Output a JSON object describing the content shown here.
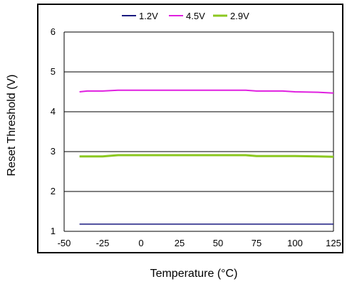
{
  "chart_data": {
    "type": "line",
    "title": "",
    "xlabel": "Temperature (°C)",
    "ylabel": "Reset Threshold  (V)",
    "xlim": [
      -50,
      125
    ],
    "ylim": [
      1,
      6
    ],
    "xticks": [
      -50,
      -25,
      0,
      25,
      50,
      75,
      100,
      125
    ],
    "yticks": [
      1,
      2,
      3,
      4,
      5,
      6
    ],
    "x_tick_labels": [
      "-50",
      "-25",
      "0",
      "25",
      "50",
      "75",
      "100",
      "125"
    ],
    "y_tick_labels": [
      "1",
      "2",
      "3",
      "4",
      "5",
      "6"
    ],
    "grid": "horizontal",
    "legend_position": "top",
    "series": [
      {
        "name": "1.2V",
        "color": "#1a1a80",
        "x": [
          -40,
          -25,
          0,
          25,
          50,
          75,
          100,
          125
        ],
        "y": [
          1.18,
          1.18,
          1.18,
          1.18,
          1.18,
          1.18,
          1.18,
          1.18
        ]
      },
      {
        "name": "4.5V",
        "color": "#e020e0",
        "x": [
          -40,
          -35,
          -25,
          -15,
          0,
          25,
          50,
          68,
          75,
          92,
          100,
          115,
          125
        ],
        "y": [
          4.5,
          4.52,
          4.52,
          4.54,
          4.54,
          4.54,
          4.54,
          4.54,
          4.52,
          4.52,
          4.5,
          4.49,
          4.47
        ]
      },
      {
        "name": "2.9V",
        "color": "#8cc820",
        "x": [
          -40,
          -25,
          -15,
          0,
          25,
          50,
          68,
          75,
          100,
          115,
          125
        ],
        "y": [
          2.88,
          2.88,
          2.91,
          2.91,
          2.91,
          2.91,
          2.91,
          2.89,
          2.89,
          2.88,
          2.87
        ]
      }
    ]
  }
}
